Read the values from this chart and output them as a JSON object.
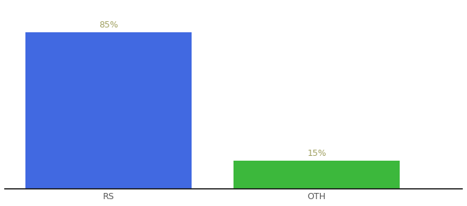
{
  "categories": [
    "RS",
    "OTH"
  ],
  "values": [
    85,
    15
  ],
  "bar_colors": [
    "#4169e1",
    "#3cb83c"
  ],
  "label_color": "#a0a060",
  "background_color": "#ffffff",
  "ylim": [
    0,
    100
  ],
  "label_fontsize": 9,
  "tick_fontsize": 9
}
